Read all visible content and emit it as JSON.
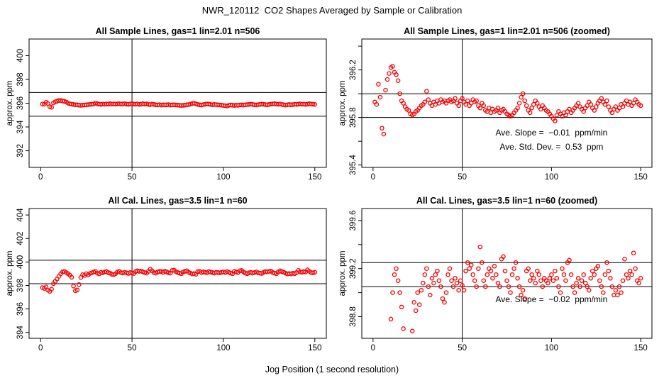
{
  "figure": {
    "main_title": "NWR_120112  CO2 Shapes Averaged by Sample or Calibration",
    "x_axis_title": "Jog Position (1 second resolution)",
    "colors": {
      "points": "#f50000",
      "lines": "#000000",
      "text": "#000000",
      "background": "#ffffff"
    }
  },
  "chart_data": {
    "type": "scatter",
    "point_symbol": "open-circle",
    "x_label": "Jog Position (1 second resolution)",
    "y_label": "approx. ppm",
    "x": [
      1,
      2,
      3,
      4,
      5,
      6,
      7,
      8,
      9,
      10,
      11,
      12,
      13,
      14,
      15,
      16,
      17,
      18,
      19,
      20,
      21,
      22,
      23,
      24,
      25,
      26,
      27,
      28,
      29,
      30,
      31,
      32,
      33,
      34,
      35,
      36,
      37,
      38,
      39,
      40,
      41,
      42,
      43,
      44,
      45,
      46,
      47,
      48,
      49,
      50,
      51,
      52,
      53,
      54,
      55,
      56,
      57,
      58,
      59,
      60,
      61,
      62,
      63,
      64,
      65,
      66,
      67,
      68,
      69,
      70,
      71,
      72,
      73,
      74,
      75,
      76,
      77,
      78,
      79,
      80,
      81,
      82,
      83,
      84,
      85,
      86,
      87,
      88,
      89,
      90,
      91,
      92,
      93,
      94,
      95,
      96,
      97,
      98,
      99,
      100,
      101,
      102,
      103,
      104,
      105,
      106,
      107,
      108,
      109,
      110,
      111,
      112,
      113,
      114,
      115,
      116,
      117,
      118,
      119,
      120,
      121,
      122,
      123,
      124,
      125,
      126,
      127,
      128,
      129,
      130,
      131,
      132,
      133,
      134,
      135,
      136,
      137,
      138,
      139,
      140,
      141,
      142,
      143,
      144,
      145,
      146,
      147,
      148,
      149,
      150
    ],
    "series": [
      {
        "name": "sample_lines_avg_ppm",
        "values": [
          395.93,
          395.91,
          396.08,
          395.97,
          395.71,
          395.66,
          396.03,
          396.12,
          396.17,
          396.22,
          396.23,
          396.18,
          396.16,
          396.11,
          396.0,
          395.94,
          395.92,
          395.89,
          395.87,
          395.86,
          395.83,
          395.82,
          395.83,
          395.85,
          395.86,
          395.88,
          395.9,
          395.91,
          395.93,
          396.02,
          395.95,
          395.92,
          395.9,
          395.93,
          395.91,
          395.94,
          395.92,
          395.95,
          395.93,
          395.94,
          395.92,
          395.94,
          395.95,
          395.93,
          395.94,
          395.96,
          395.92,
          395.9,
          395.94,
          395.96,
          395.93,
          395.91,
          395.94,
          395.9,
          395.92,
          395.95,
          395.93,
          395.94,
          395.9,
          395.88,
          395.92,
          395.9,
          395.86,
          395.85,
          395.88,
          395.84,
          395.87,
          395.85,
          395.86,
          395.88,
          395.84,
          395.86,
          395.87,
          395.85,
          395.83,
          395.82,
          395.81,
          395.82,
          395.84,
          395.86,
          395.88,
          395.92,
          395.97,
          396.0,
          395.94,
          395.9,
          395.86,
          395.84,
          395.88,
          395.91,
          395.94,
          395.92,
          395.89,
          395.87,
          395.9,
          395.88,
          395.86,
          395.85,
          395.83,
          395.81,
          395.79,
          395.77,
          395.82,
          395.85,
          395.83,
          395.81,
          395.84,
          395.82,
          395.85,
          395.87,
          395.84,
          395.86,
          395.88,
          395.9,
          395.92,
          395.89,
          395.87,
          395.85,
          395.88,
          395.9,
          395.93,
          395.91,
          395.88,
          395.86,
          395.89,
          395.92,
          395.94,
          395.96,
          395.93,
          395.91,
          395.94,
          395.89,
          395.86,
          395.84,
          395.87,
          395.89,
          395.86,
          395.88,
          395.91,
          395.89,
          395.92,
          395.94,
          395.91,
          395.93,
          395.9,
          395.92,
          395.95,
          395.93,
          395.91,
          395.9
        ]
      },
      {
        "name": "cal_lines_avg_ppm",
        "values": [
          397.82,
          397.75,
          397.88,
          397.6,
          397.5,
          397.68,
          398.15,
          398.35,
          398.55,
          398.78,
          399.0,
          399.15,
          399.2,
          399.1,
          399.0,
          398.88,
          398.7,
          397.95,
          397.55,
          397.62,
          398.08,
          398.68,
          398.92,
          398.85,
          399.0,
          398.9,
          399.02,
          399.08,
          399.15,
          399.2,
          399.05,
          398.98,
          399.12,
          399.08,
          399.15,
          399.18,
          399.1,
          399.05,
          398.95,
          398.92,
          399.0,
          399.15,
          399.2,
          399.1,
          399.05,
          399.12,
          399.08,
          399.02,
          399.1,
          399.06,
          399.02,
          399.18,
          399.25,
          399.2,
          399.23,
          399.15,
          399.1,
          399.05,
          399.2,
          399.38,
          399.25,
          399.1,
          399.05,
          399.15,
          399.2,
          399.18,
          399.12,
          399.22,
          399.15,
          399.08,
          399.05,
          399.28,
          399.3,
          399.18,
          399.1,
          399.05,
          399.0,
          399.15,
          399.2,
          399.25,
          399.12,
          399.05,
          398.98,
          399.02,
          398.95,
          399.18,
          399.2,
          399.1,
          399.15,
          399.12,
          399.08,
          399.18,
          399.15,
          399.1,
          399.05,
          399.12,
          399.1,
          399.08,
          399.12,
          399.15,
          399.1,
          399.18,
          399.12,
          399.05,
          399.0,
          399.2,
          399.15,
          399.1,
          399.25,
          399.27,
          399.15,
          399.05,
          399.0,
          399.08,
          399.12,
          399.05,
          399.1,
          399.15,
          399.08,
          399.05,
          399.02,
          399.12,
          399.18,
          399.15,
          399.2,
          399.22,
          399.1,
          399.05,
          399.0,
          399.15,
          399.25,
          399.18,
          399.12,
          399.05,
          398.98,
          399.02,
          398.98,
          399.05,
          399.0,
          399.1,
          399.28,
          399.15,
          399.12,
          399.18,
          399.15,
          399.33,
          399.2,
          399.1,
          399.08,
          399.12
        ]
      }
    ],
    "panels": [
      {
        "title": "All Sample Lines, gas=1 lin=2.01 n=506",
        "series": "sample_lines_avg_ppm",
        "xlim": [
          -6.3,
          156.3
        ],
        "ylim": [
          390.6,
          401.4
        ],
        "x_ticks": [
          0,
          50,
          100,
          150
        ],
        "x_tick_labels": [
          "0",
          "50",
          "100",
          "150"
        ],
        "y_ticks": [
          392,
          394,
          396,
          398,
          400
        ],
        "y_tick_labels": [
          "392",
          "394",
          "396",
          "398",
          "400"
        ],
        "h_ref_lines": [
          394.9,
          396.9
        ],
        "v_ref_lines": [
          50
        ],
        "annotations": []
      },
      {
        "title": "All Sample Lines, gas=1 lin=2.01 n=506 (zoomed)",
        "series": "sample_lines_avg_ppm",
        "xlim": [
          -6.3,
          156.3
        ],
        "ylim": [
          395.38,
          396.46
        ],
        "x_ticks": [
          0,
          50,
          100,
          150
        ],
        "x_tick_labels": [
          "0",
          "50",
          "100",
          "150"
        ],
        "y_ticks": [
          395.4,
          395.6,
          395.8,
          396.0,
          396.2,
          396.4
        ],
        "y_tick_labels": [
          "395.4",
          "",
          "395.8",
          "",
          "396.2",
          ""
        ],
        "h_ref_lines": [
          395.8,
          396.0
        ],
        "v_ref_lines": [
          50
        ],
        "annotations": [
          {
            "text": "Ave. Slope =  −0.01  ppm/min",
            "x": 100,
            "y": 395.65
          },
          {
            "text": "Ave. Std. Dev. =  0.53  ppm",
            "x": 100,
            "y": 395.53
          }
        ]
      },
      {
        "title": "All Cal. Lines, gas=3.5 lin=1 n=60",
        "series": "cal_lines_avg_ppm",
        "xlim": [
          -6.3,
          156.3
        ],
        "ylim": [
          393.5,
          404.55
        ],
        "x_ticks": [
          0,
          50,
          100,
          150
        ],
        "x_tick_labels": [
          "0",
          "50",
          "100",
          "150"
        ],
        "y_ticks": [
          394,
          396,
          398,
          400,
          402,
          404
        ],
        "y_tick_labels": [
          "394",
          "396",
          "398",
          "400",
          "402",
          "404"
        ],
        "h_ref_lines": [
          398.15,
          400.15
        ],
        "v_ref_lines": [
          50
        ],
        "annotations": []
      },
      {
        "title": "All Cal. Lines, gas=3.5 lin=1 n=60 (zoomed)",
        "series": "cal_lines_avg_ppm",
        "xlim": [
          -6.3,
          156.3
        ],
        "ylim": [
          398.62,
          399.7
        ],
        "x_ticks": [
          0,
          50,
          100,
          150
        ],
        "x_tick_labels": [
          "0",
          "50",
          "100",
          "150"
        ],
        "y_ticks": [
          398.8,
          399.0,
          399.2,
          399.4,
          399.6
        ],
        "y_tick_labels": [
          "398.8",
          "",
          "399.2",
          "",
          "399.6"
        ],
        "h_ref_lines": [
          399.05,
          399.25
        ],
        "v_ref_lines": [
          50
        ],
        "annotations": [
          {
            "text": "Ave. Slope =  −0.02  ppm/min",
            "x": 100,
            "y": 398.92
          }
        ]
      }
    ]
  }
}
